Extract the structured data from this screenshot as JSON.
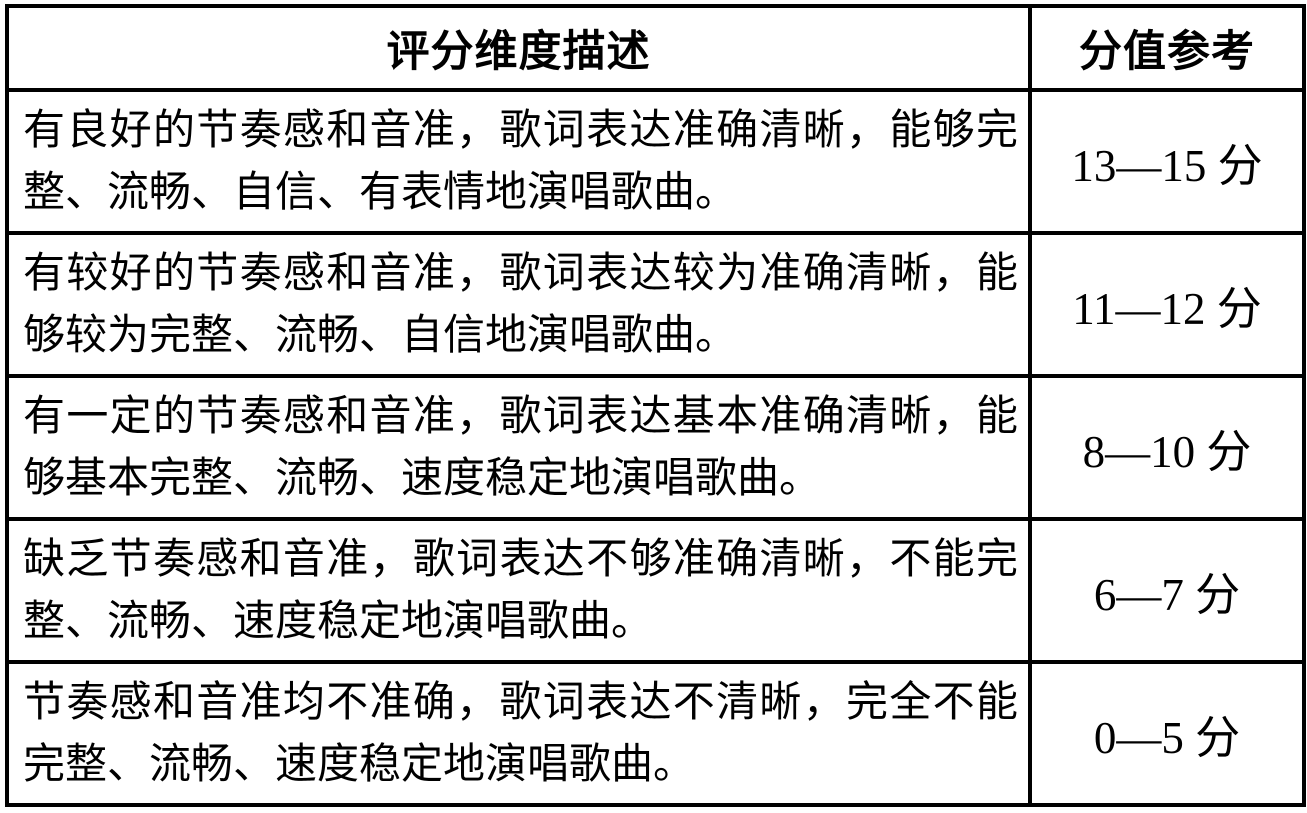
{
  "table": {
    "headers": {
      "description": "评分维度描述",
      "score": "分值参考"
    },
    "rows": [
      {
        "description": "有良好的节奏感和音准，歌词表达准确清晰，能够完整、流畅、自信、有表情地演唱歌曲。",
        "score": "13—15 分"
      },
      {
        "description": "有较好的节奏感和音准，歌词表达较为准确清晰，能够较为完整、流畅、自信地演唱歌曲。",
        "score": "11—12 分"
      },
      {
        "description": "有一定的节奏感和音准，歌词表达基本准确清晰，能够基本完整、流畅、速度稳定地演唱歌曲。",
        "score": "8—10 分"
      },
      {
        "description": "缺乏节奏感和音准，歌词表达不够准确清晰，不能完整、流畅、速度稳定地演唱歌曲。",
        "score": "6—7 分"
      },
      {
        "description": "节奏感和音准均不准确，歌词表达不清晰，完全不能完整、流畅、速度稳定地演唱歌曲。",
        "score": "0—5 分"
      }
    ]
  },
  "colors": {
    "border": "#000000",
    "background": "#ffffff",
    "text": "#000000"
  }
}
